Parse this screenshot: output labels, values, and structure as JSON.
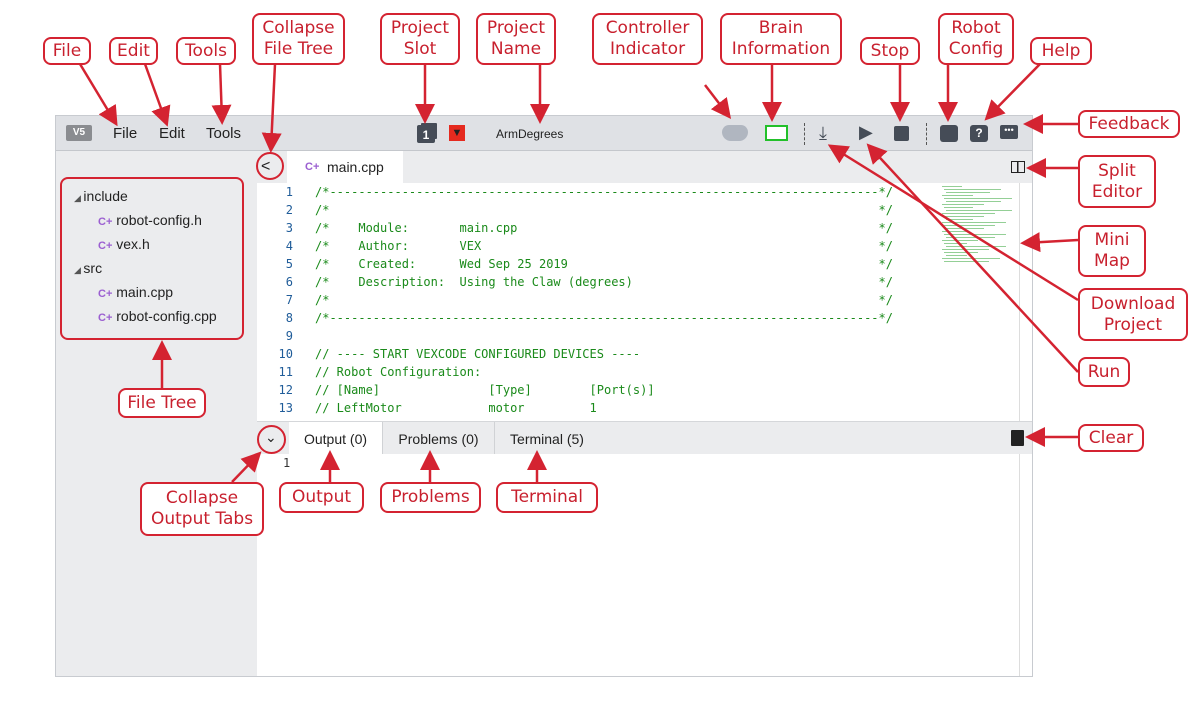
{
  "toolbar": {
    "logo": "VEXcode V5",
    "menus": [
      "File",
      "Edit",
      "Tools"
    ],
    "project_slot": "1",
    "project_name": "ArmDegrees",
    "icons": [
      "controller-icon",
      "brain-icon",
      "download-icon",
      "play-icon",
      "stop-icon",
      "robot-config-icon",
      "help-icon",
      "feedback-icon"
    ]
  },
  "colors": {
    "callout": "#d42331",
    "toolbar": "#dfe1e5",
    "code_comment": "#1a8a1a",
    "brain_connected": "#22c02a"
  },
  "file_tree": {
    "folders": [
      {
        "name": "include",
        "files": [
          "robot-config.h",
          "vex.h"
        ]
      },
      {
        "name": "src",
        "files": [
          "main.cpp",
          "robot-config.cpp"
        ]
      }
    ]
  },
  "editor": {
    "tab": "main.cpp",
    "lines": [
      "/*----------------------------------------------------------------------------*/",
      "/*                                                                            */",
      "/*    Module:       main.cpp                                                  */",
      "/*    Author:       VEX                                                       */",
      "/*    Created:      Wed Sep 25 2019                                           */",
      "/*    Description:  Using the Claw (degrees)                                  */",
      "/*                                                                            */",
      "/*----------------------------------------------------------------------------*/",
      "",
      "// ---- START VEXCODE CONFIGURED DEVICES ----",
      "// Robot Configuration:",
      "// [Name]               [Type]        [Port(s)]",
      "// LeftMotor            motor         1"
    ]
  },
  "output": {
    "tabs": [
      "Output (0)",
      "Problems (0)",
      "Terminal (5)"
    ],
    "line_number": "1"
  },
  "callouts": {
    "file": "File",
    "edit": "Edit",
    "tools": "Tools",
    "collapse_file_tree": "Collapse File Tree",
    "project_slot": "Project Slot",
    "project_name": "Project Name",
    "controller_indicator": "Controller Indicator",
    "brain_information": "Brain Information",
    "stop": "Stop",
    "robot_config": "Robot Config",
    "help": "Help",
    "feedback": "Feedback",
    "split_editor": "Split Editor",
    "mini_map": "Mini Map",
    "clear": "Clear",
    "download_project": "Download Project",
    "run": "Run",
    "file_tree": "File Tree",
    "collapse_output_tabs": "Collapse Output Tabs",
    "output": "Output",
    "problems": "Problems",
    "terminal": "Terminal"
  }
}
